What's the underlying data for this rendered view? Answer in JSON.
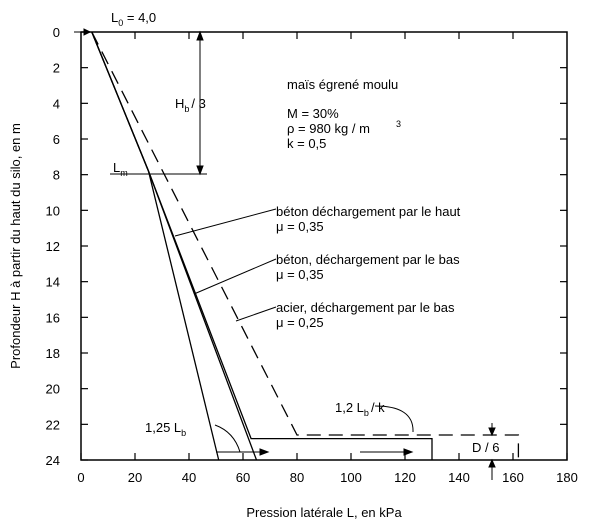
{
  "chart_data": {
    "type": "line",
    "title": "",
    "xlabel": "Pression latérale L, en kPa",
    "ylabel": "Profondeur H  à partir du haut du silo, en m",
    "xlim": [
      0,
      180
    ],
    "ylim": [
      24,
      0
    ],
    "y_inverted": true,
    "grid": false,
    "x_ticks": [
      0,
      20,
      40,
      60,
      80,
      100,
      120,
      140,
      160,
      180
    ],
    "y_ticks": [
      0,
      2,
      4,
      6,
      8,
      10,
      12,
      14,
      16,
      18,
      20,
      22,
      24
    ],
    "series": [
      {
        "name": "béton déchargement par le haut",
        "mu": "μ = 0,35",
        "style": "solid",
        "points": [
          [
            4,
            0
          ],
          [
            25,
            7.8
          ],
          [
            51,
            24
          ]
        ]
      },
      {
        "name": "béton, déchargement par le bas",
        "mu": "μ = 0,35",
        "style": "solid",
        "points": [
          [
            4,
            0
          ],
          [
            25,
            7.8
          ],
          [
            63,
            22.8
          ],
          [
            130,
            22.8
          ],
          [
            130,
            24
          ]
        ]
      },
      {
        "name": "acier, déchargement par le bas",
        "mu": "μ = 0,25",
        "style": "dashed",
        "points": [
          [
            4,
            0
          ],
          [
            80,
            22.6
          ],
          [
            162,
            22.6
          ],
          [
            162,
            24
          ]
        ]
      },
      {
        "name": "",
        "style": "solid",
        "points": [
          [
            4,
            0
          ],
          [
            25,
            7.8
          ],
          [
            65,
            24
          ]
        ]
      }
    ],
    "material_block": {
      "title": "maïs égrené moulu",
      "lines": [
        "M = 30%",
        "ρ = 980 kg / m",
        "k = 0,5"
      ],
      "superscript": "3"
    },
    "annotations": {
      "l0": "L",
      "l0_sub": "0",
      "l0_value": " = 4,0",
      "hb": "H",
      "hb_sub": "b",
      "hb_suffix": "/ 3",
      "lm": "L",
      "lm_sub": "m",
      "l125": "1,25 L",
      "l125_sub": "b",
      "l12": "1,2 L",
      "l12_sub": "b",
      "l12_suffix": "/ k",
      "d6": "D / 6"
    }
  }
}
